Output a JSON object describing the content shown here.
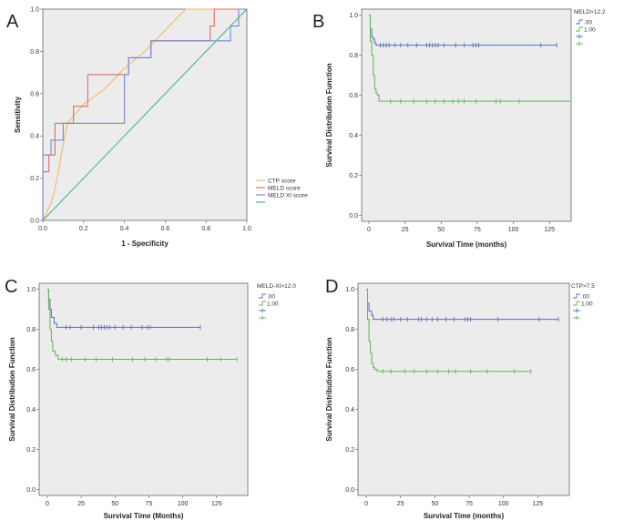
{
  "colors": {
    "plot_bg": "#ececec",
    "ctp": "#f4b766",
    "meld": "#e36a6a",
    "meldxi": "#7a85d2",
    "reference": "#4fb38d",
    "group0": "#5a6cb8",
    "group1": "#62b35a"
  },
  "chart_data": [
    {
      "panel": "A",
      "type": "line",
      "title": "",
      "xlabel": "1 - Specificity",
      "ylabel": "Sensitivity",
      "xlim": [
        0,
        1
      ],
      "ylim": [
        0,
        1
      ],
      "xticks": [
        "0.0",
        "0.2",
        "0.4",
        "0.6",
        "0.8",
        "1.0"
      ],
      "yticks": [
        "0.0",
        "0.2",
        "0.4",
        "0.6",
        "0.8",
        "1.0"
      ],
      "legend": [
        "CTP score",
        "MELD score",
        "MELD XI score",
        ""
      ],
      "series": [
        {
          "name": "CTP score",
          "key": "ctp",
          "x": [
            0,
            0.04,
            0.06,
            0.08,
            0.09,
            0.12,
            0.2,
            0.3,
            0.4,
            0.5,
            0.6,
            0.7,
            1.0
          ],
          "y": [
            0,
            0.08,
            0.15,
            0.25,
            0.31,
            0.46,
            0.55,
            0.62,
            0.72,
            0.8,
            0.9,
            1.0,
            1.0
          ]
        },
        {
          "name": "MELD score",
          "key": "meld",
          "x": [
            0,
            0,
            0.03,
            0.03,
            0.06,
            0.06,
            0.1,
            0.1,
            0.15,
            0.15,
            0.22,
            0.22,
            0.32,
            0.32,
            0.42,
            0.42,
            0.53,
            0.53,
            0.82,
            0.82,
            0.84,
            0.84,
            0.96,
            0.96,
            1.0
          ],
          "y": [
            0,
            0.23,
            0.23,
            0.31,
            0.31,
            0.46,
            0.46,
            0.46,
            0.46,
            0.54,
            0.54,
            0.69,
            0.69,
            0.69,
            0.69,
            0.77,
            0.77,
            0.85,
            0.85,
            0.92,
            0.92,
            1.0,
            1.0,
            1.0,
            1.0
          ]
        },
        {
          "name": "MELD XI score",
          "key": "meldxi",
          "x": [
            0,
            0,
            0.04,
            0.04,
            0.1,
            0.1,
            0.4,
            0.4,
            0.42,
            0.42,
            0.53,
            0.53,
            0.92,
            0.92,
            0.96,
            0.96,
            1.0
          ],
          "y": [
            0,
            0.31,
            0.31,
            0.38,
            0.38,
            0.46,
            0.46,
            0.69,
            0.69,
            0.77,
            0.77,
            0.85,
            0.85,
            0.92,
            0.92,
            1.0,
            1.0
          ]
        },
        {
          "name": "Reference",
          "key": "reference",
          "x": [
            0,
            1
          ],
          "y": [
            0,
            1
          ]
        }
      ]
    },
    {
      "panel": "B",
      "type": "line",
      "title": "MELD>12.2",
      "xlabel": "Survival Time (months)",
      "ylabel": "Survival Distribution Function",
      "xlim": [
        -5,
        140
      ],
      "ylim": [
        -0.03,
        1.03
      ],
      "xticks": [
        "0",
        "25",
        "50",
        "75",
        "100",
        "125"
      ],
      "yticks": [
        "0.0",
        "0.2",
        "0.4",
        "0.6",
        "0.8",
        "1.0"
      ],
      "legend": [
        ".00",
        "1.00",
        "",
        ""
      ],
      "series": [
        {
          "name": ".00",
          "key": "group0",
          "step_x": [
            0,
            1,
            2,
            3,
            4,
            5,
            130
          ],
          "step_y": [
            1.0,
            0.93,
            0.89,
            0.88,
            0.86,
            0.85,
            0.85
          ],
          "censored": [
            8,
            10,
            12,
            14,
            18,
            22,
            27,
            33,
            40,
            42,
            44,
            46,
            48,
            52,
            60,
            66,
            72,
            74,
            76,
            119,
            130
          ]
        },
        {
          "name": "1.00",
          "key": "group1",
          "step_x": [
            0,
            1,
            2,
            3,
            4,
            5,
            6,
            7,
            140
          ],
          "step_y": [
            1.0,
            0.87,
            0.8,
            0.7,
            0.63,
            0.61,
            0.6,
            0.57,
            0.57
          ],
          "censored": [
            15,
            22,
            31,
            40,
            46,
            52,
            58,
            62,
            66,
            74,
            88,
            91,
            104,
            140
          ]
        }
      ]
    },
    {
      "panel": "C",
      "type": "line",
      "title": "MELD-XI>12.0",
      "xlabel": "Survival Time (Months)",
      "ylabel": "Survival Distribution Function",
      "xlim": [
        -6,
        148
      ],
      "ylim": [
        -0.03,
        1.03
      ],
      "xticks": [
        "0",
        "25",
        "50",
        "75",
        "100",
        "125"
      ],
      "yticks": [
        "0.0",
        "0.2",
        "0.4",
        "0.6",
        "0.8",
        "1.0"
      ],
      "legend": [
        ".00",
        "1.00",
        "",
        ""
      ],
      "series": [
        {
          "name": ".00",
          "key": "group0",
          "step_x": [
            0,
            1,
            2,
            3,
            5,
            7,
            113
          ],
          "step_y": [
            1.0,
            0.95,
            0.9,
            0.86,
            0.83,
            0.81,
            0.81
          ],
          "censored": [
            14,
            17,
            25,
            34,
            38,
            40,
            42,
            44,
            46,
            50,
            56,
            62,
            70,
            74,
            76,
            113
          ]
        },
        {
          "name": "1.00",
          "key": "group1",
          "step_x": [
            0,
            1,
            2,
            3,
            4,
            6,
            8,
            140
          ],
          "step_y": [
            1.0,
            0.9,
            0.8,
            0.74,
            0.69,
            0.67,
            0.65,
            0.65
          ],
          "censored": [
            11,
            14,
            18,
            28,
            36,
            48,
            63,
            72,
            80,
            88,
            90,
            118,
            128,
            140
          ]
        }
      ]
    },
    {
      "panel": "D",
      "type": "line",
      "title": "CTP>7.5",
      "xlabel": "Survival Time (months)",
      "ylabel": "Survival Distribution Function",
      "xlim": [
        -6,
        148
      ],
      "ylim": [
        -0.03,
        1.03
      ],
      "xticks": [
        "0",
        "25",
        "50",
        "75",
        "100",
        "125"
      ],
      "yticks": [
        "0.0",
        "0.2",
        "0.4",
        "0.6",
        "0.8",
        "1.0"
      ],
      "legend": [
        ".00",
        "1.00",
        "",
        ""
      ],
      "series": [
        {
          "name": ".00",
          "key": "group0",
          "step_x": [
            0,
            1,
            2,
            4,
            5,
            140
          ],
          "step_y": [
            1.0,
            0.93,
            0.89,
            0.87,
            0.85,
            0.85
          ],
          "censored": [
            12,
            15,
            18,
            20,
            25,
            30,
            38,
            40,
            44,
            48,
            52,
            58,
            64,
            72,
            74,
            76,
            96,
            126,
            140
          ]
        },
        {
          "name": "1.00",
          "key": "group1",
          "step_x": [
            0,
            1,
            2,
            3,
            4,
            5,
            6,
            8,
            120
          ],
          "step_y": [
            1.0,
            0.85,
            0.74,
            0.68,
            0.63,
            0.61,
            0.6,
            0.59,
            0.59
          ],
          "censored": [
            12,
            18,
            28,
            35,
            44,
            52,
            60,
            65,
            76,
            88,
            108,
            120
          ]
        }
      ]
    }
  ]
}
